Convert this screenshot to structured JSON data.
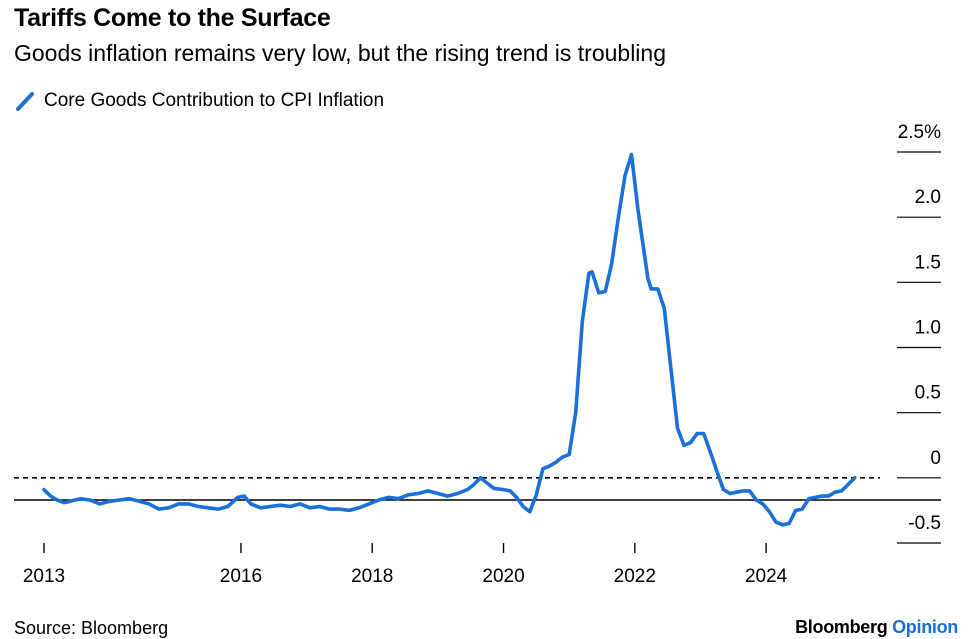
{
  "title": "Tariffs Come to the Surface",
  "subtitle": "Goods inflation remains very low, but the rising trend is troubling",
  "source": "Source: Bloomberg",
  "brand": {
    "name": "Bloomberg",
    "suffix": "Opinion"
  },
  "chart_data": {
    "type": "line",
    "title": "Tariffs Come to the Surface",
    "subtitle": "Goods inflation remains very low, but the rising trend is troubling",
    "xlabel": "",
    "ylabel": "",
    "xlim": [
      2013.0,
      2025.4
    ],
    "ylim": [
      -0.5,
      2.5
    ],
    "y_ticks": [
      {
        "value": 2.5,
        "label": "2.5%"
      },
      {
        "value": 2.0,
        "label": "2.0"
      },
      {
        "value": 1.5,
        "label": "1.5"
      },
      {
        "value": 1.0,
        "label": "1.0"
      },
      {
        "value": 0.5,
        "label": "0.5"
      },
      {
        "value": 0.0,
        "label": "0"
      },
      {
        "value": -0.5,
        "label": "-0.5"
      }
    ],
    "x_ticks": [
      {
        "value": 2013,
        "label": "2013"
      },
      {
        "value": 2016,
        "label": "2016"
      },
      {
        "value": 2018,
        "label": "2018"
      },
      {
        "value": 2020,
        "label": "2020"
      },
      {
        "value": 2022,
        "label": "2022"
      },
      {
        "value": 2024,
        "label": "2024"
      }
    ],
    "reference_lines": [
      {
        "value": 0,
        "style": "dashed"
      },
      {
        "value": -0.17,
        "style": "solid"
      }
    ],
    "legend_position": "top-left",
    "series": [
      {
        "name": "Core Goods Contribution to CPI Inflation",
        "color": "#1a6fd9",
        "x": [
          2013.0,
          2013.1,
          2013.2,
          2013.3,
          2013.4,
          2013.55,
          2013.7,
          2013.85,
          2014.0,
          2014.15,
          2014.3,
          2014.45,
          2014.6,
          2014.75,
          2014.9,
          2015.05,
          2015.2,
          2015.35,
          2015.5,
          2015.65,
          2015.8,
          2015.95,
          2016.05,
          2016.15,
          2016.3,
          2016.45,
          2016.6,
          2016.75,
          2016.9,
          2017.05,
          2017.2,
          2017.35,
          2017.5,
          2017.65,
          2017.8,
          2017.95,
          2018.1,
          2018.25,
          2018.4,
          2018.55,
          2018.7,
          2018.85,
          2019.0,
          2019.15,
          2019.3,
          2019.45,
          2019.55,
          2019.65,
          2019.75,
          2019.85,
          2020.0,
          2020.1,
          2020.2,
          2020.3,
          2020.4,
          2020.5,
          2020.6,
          2020.7,
          2020.8,
          2020.9,
          2021.0,
          2021.1,
          2021.2,
          2021.3,
          2021.35,
          2021.45,
          2021.55,
          2021.65,
          2021.75,
          2021.85,
          2021.95,
          2022.05,
          2022.15,
          2022.2,
          2022.25,
          2022.35,
          2022.45,
          2022.55,
          2022.65,
          2022.75,
          2022.85,
          2022.95,
          2023.05,
          2023.15,
          2023.25,
          2023.35,
          2023.45,
          2023.55,
          2023.65,
          2023.75,
          2023.85,
          2023.95,
          2024.05,
          2024.15,
          2024.25,
          2024.35,
          2024.45,
          2024.55,
          2024.65,
          2024.75,
          2024.85,
          2024.95,
          2025.05,
          2025.15,
          2025.25,
          2025.35
        ],
        "y": [
          -0.09,
          -0.14,
          -0.17,
          -0.19,
          -0.18,
          -0.16,
          -0.17,
          -0.2,
          -0.18,
          -0.17,
          -0.16,
          -0.18,
          -0.2,
          -0.24,
          -0.23,
          -0.2,
          -0.2,
          -0.22,
          -0.23,
          -0.24,
          -0.22,
          -0.15,
          -0.14,
          -0.2,
          -0.23,
          -0.22,
          -0.21,
          -0.22,
          -0.2,
          -0.23,
          -0.22,
          -0.24,
          -0.24,
          -0.25,
          -0.23,
          -0.2,
          -0.17,
          -0.15,
          -0.16,
          -0.13,
          -0.12,
          -0.1,
          -0.12,
          -0.14,
          -0.12,
          -0.09,
          -0.05,
          0.0,
          -0.04,
          -0.08,
          -0.09,
          -0.1,
          -0.15,
          -0.22,
          -0.26,
          -0.13,
          0.07,
          0.09,
          0.12,
          0.16,
          0.18,
          0.5,
          1.2,
          1.57,
          1.58,
          1.42,
          1.43,
          1.65,
          2.0,
          2.32,
          2.48,
          2.05,
          1.7,
          1.53,
          1.45,
          1.45,
          1.3,
          0.84,
          0.38,
          0.25,
          0.27,
          0.34,
          0.34,
          0.2,
          0.05,
          -0.09,
          -0.12,
          -0.11,
          -0.1,
          -0.1,
          -0.17,
          -0.2,
          -0.26,
          -0.34,
          -0.36,
          -0.35,
          -0.25,
          -0.24,
          -0.16,
          -0.15,
          -0.14,
          -0.14,
          -0.11,
          -0.1,
          -0.05,
          0.0
        ]
      }
    ]
  }
}
